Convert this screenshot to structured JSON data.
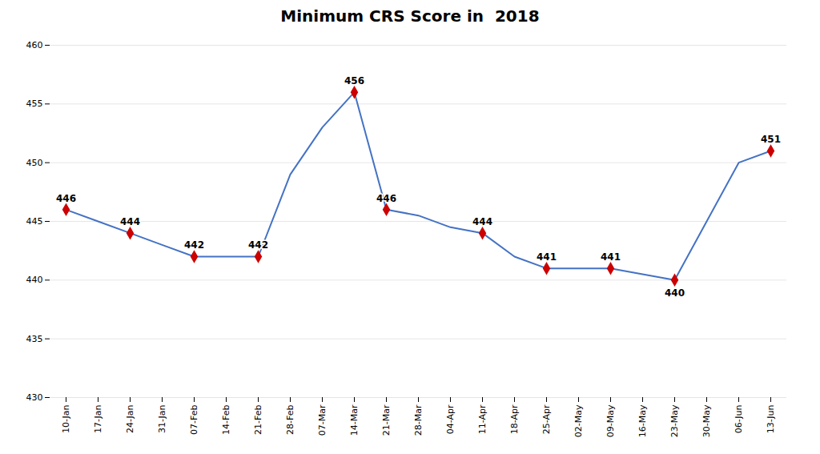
{
  "chart_data": {
    "type": "line",
    "title": "Minimum CRS Score in  2018",
    "categories": [
      "10-Jan",
      "17-Jan",
      "24-Jan",
      "31-Jan",
      "07-Feb",
      "14-Feb",
      "21-Feb",
      "28-Feb",
      "07-Mar",
      "14-Mar",
      "21-Mar",
      "28-Mar",
      "04-Apr",
      "11-Apr",
      "18-Apr",
      "25-Apr",
      "02-May",
      "09-May",
      "16-May",
      "23-May",
      "30-May",
      "06-Jun",
      "13-Jun"
    ],
    "series": [
      {
        "type": "line",
        "color": "#4472C4",
        "values": [
          446,
          445,
          444,
          443,
          442,
          442,
          442,
          449,
          453,
          456,
          446,
          445.5,
          444.5,
          444,
          442,
          441,
          441,
          441,
          440.5,
          440,
          445,
          450,
          451
        ]
      },
      {
        "type": "scatter",
        "color": "#CC0000",
        "marker": "diamond",
        "values": [
          446,
          null,
          444,
          null,
          442,
          null,
          442,
          null,
          null,
          456,
          446,
          null,
          null,
          444,
          null,
          441,
          null,
          441,
          null,
          440,
          null,
          null,
          451
        ]
      }
    ],
    "annotations": [
      {
        "x": "10-Jan",
        "y": 446,
        "text": "446"
      },
      {
        "x": "24-Jan",
        "y": 444,
        "text": "444"
      },
      {
        "x": "07-Feb",
        "y": 442,
        "text": "442"
      },
      {
        "x": "21-Feb",
        "y": 442,
        "text": "442"
      },
      {
        "x": "14-Mar",
        "y": 456,
        "text": "456"
      },
      {
        "x": "21-Mar",
        "y": 446,
        "text": "446"
      },
      {
        "x": "11-Apr",
        "y": 444,
        "text": "444"
      },
      {
        "x": "25-Apr",
        "y": 441,
        "text": "441"
      },
      {
        "x": "09-May",
        "y": 441,
        "text": "441"
      },
      {
        "x": "23-May",
        "y": 440,
        "text": "440"
      },
      {
        "x": "13-Jun",
        "y": 451,
        "text": "451"
      }
    ],
    "ylim": [
      430,
      460
    ],
    "yticks": [
      430,
      435,
      440,
      445,
      450,
      455,
      460
    ],
    "grid": true
  }
}
